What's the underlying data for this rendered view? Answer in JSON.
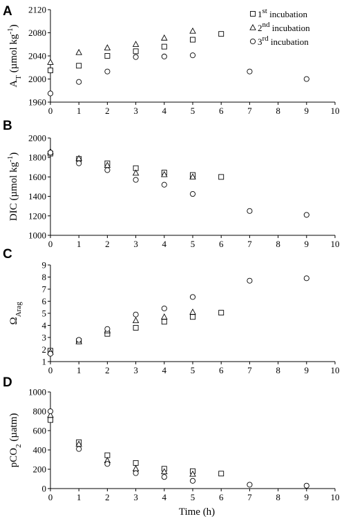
{
  "figure": {
    "xlabel": "Time (h)",
    "legend": [
      {
        "prefix": "1",
        "sup": "st",
        "suffix": " incubation",
        "marker": "square"
      },
      {
        "prefix": "2",
        "sup": "nd",
        "suffix": " incubation",
        "marker": "triangle"
      },
      {
        "prefix": "3",
        "sup": "rd",
        "suffix": " incubation",
        "marker": "circle"
      }
    ]
  },
  "chart_data": [
    {
      "type": "scatter",
      "panel": "A",
      "ylabel_parts": {
        "main": "A",
        "sub": "T",
        "rest": " (µmol kg",
        "sup": "-1",
        "end": ")"
      },
      "xlim": [
        0,
        10
      ],
      "ylim": [
        1960,
        2120
      ],
      "xticks": [
        0,
        1,
        2,
        3,
        4,
        5,
        6,
        7,
        8,
        9,
        10
      ],
      "yticks": [
        1960,
        2000,
        2040,
        2080,
        2120
      ],
      "series": [
        {
          "name": "1st incubation",
          "marker": "square",
          "x": [
            0,
            1,
            2,
            3,
            4,
            5,
            6
          ],
          "y": [
            2015,
            2023,
            2040,
            2048,
            2056,
            2068,
            2078
          ]
        },
        {
          "name": "2nd incubation",
          "marker": "triangle",
          "x": [
            0,
            1,
            2,
            3,
            4,
            5
          ],
          "y": [
            2029,
            2046,
            2054,
            2060,
            2071,
            2083
          ]
        },
        {
          "name": "3rd incubation",
          "marker": "circle",
          "x": [
            0,
            1,
            2,
            3,
            4,
            5,
            7,
            9
          ],
          "y": [
            1975,
            1995,
            2013,
            2038,
            2039,
            2041,
            2013,
            2000
          ]
        }
      ]
    },
    {
      "type": "scatter",
      "panel": "B",
      "ylabel_parts": {
        "main": "DIC (µmol kg",
        "sup": "-1",
        "end": ")"
      },
      "xlim": [
        0,
        10
      ],
      "ylim": [
        1000,
        2000
      ],
      "xticks": [
        0,
        1,
        2,
        3,
        4,
        5,
        6,
        7,
        8,
        9,
        10
      ],
      "yticks": [
        1000,
        1200,
        1400,
        1600,
        1800,
        2000
      ],
      "series": [
        {
          "name": "1st incubation",
          "marker": "square",
          "x": [
            0,
            1,
            2,
            3,
            4,
            5,
            6
          ],
          "y": [
            1840,
            1785,
            1740,
            1690,
            1645,
            1620,
            1600
          ]
        },
        {
          "name": "2nd incubation",
          "marker": "triangle",
          "x": [
            0,
            1,
            2,
            3,
            4,
            5
          ],
          "y": [
            1860,
            1790,
            1720,
            1640,
            1625,
            1600
          ]
        },
        {
          "name": "3rd incubation",
          "marker": "circle",
          "x": [
            0,
            1,
            2,
            3,
            4,
            5,
            7,
            9
          ],
          "y": [
            1850,
            1740,
            1670,
            1570,
            1520,
            1425,
            1250,
            1210
          ]
        }
      ]
    },
    {
      "type": "scatter",
      "panel": "C",
      "ylabel_parts": {
        "main": "Ω",
        "sub": "Arag"
      },
      "xlim": [
        0,
        10
      ],
      "ylim": [
        1,
        9
      ],
      "xticks": [
        0,
        1,
        2,
        3,
        4,
        5,
        6,
        7,
        8,
        9,
        10
      ],
      "yticks": [
        1,
        2,
        3,
        4,
        5,
        6,
        7,
        8,
        9
      ],
      "series": [
        {
          "name": "1st incubation",
          "marker": "square",
          "x": [
            0,
            1,
            2,
            3,
            4,
            5,
            6
          ],
          "y": [
            1.9,
            2.7,
            3.3,
            3.8,
            4.3,
            4.7,
            5.05
          ]
        },
        {
          "name": "2nd incubation",
          "marker": "triangle",
          "x": [
            0,
            1,
            2,
            3,
            4,
            5
          ],
          "y": [
            1.8,
            2.65,
            3.55,
            4.4,
            4.7,
            5.1
          ]
        },
        {
          "name": "3rd incubation",
          "marker": "circle",
          "x": [
            0,
            1,
            2,
            3,
            4,
            5,
            7,
            9
          ],
          "y": [
            1.65,
            2.8,
            3.7,
            4.9,
            5.4,
            6.35,
            7.7,
            7.9
          ]
        }
      ]
    },
    {
      "type": "scatter",
      "panel": "D",
      "ylabel_parts": {
        "main": "pCO",
        "sub": "2",
        "rest": " (µatm)"
      },
      "xlim": [
        0,
        10
      ],
      "ylim": [
        0,
        1000
      ],
      "xticks": [
        0,
        1,
        2,
        3,
        4,
        5,
        6,
        7,
        8,
        9,
        10
      ],
      "yticks": [
        0,
        200,
        400,
        600,
        800,
        1000
      ],
      "series": [
        {
          "name": "1st incubation",
          "marker": "square",
          "x": [
            0,
            1,
            2,
            3,
            4,
            5,
            6
          ],
          "y": [
            710,
            480,
            345,
            265,
            205,
            180,
            155
          ]
        },
        {
          "name": "2nd incubation",
          "marker": "triangle",
          "x": [
            0,
            1,
            2,
            3,
            4,
            5
          ],
          "y": [
            760,
            460,
            290,
            205,
            175,
            150
          ]
        },
        {
          "name": "3rd incubation",
          "marker": "circle",
          "x": [
            0,
            1,
            2,
            3,
            4,
            5,
            7,
            9
          ],
          "y": [
            800,
            410,
            255,
            160,
            120,
            80,
            40,
            30
          ]
        }
      ]
    }
  ]
}
